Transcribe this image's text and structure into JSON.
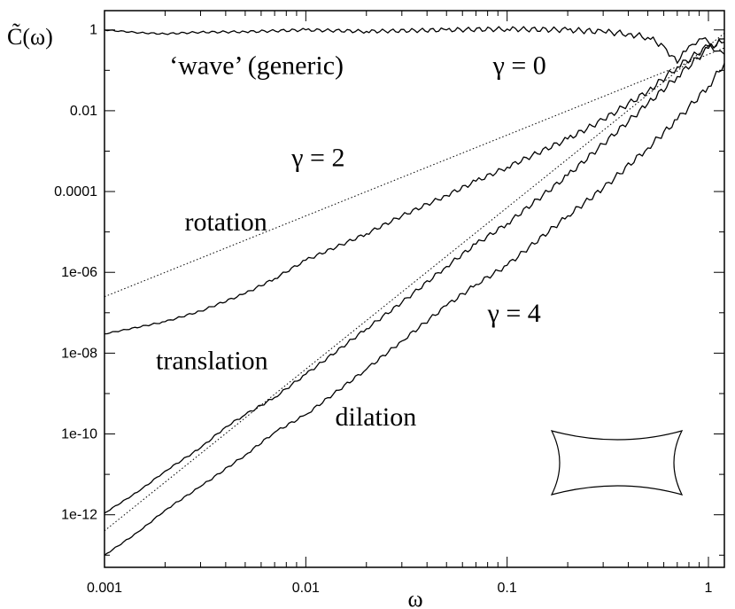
{
  "chart_data": {
    "type": "line",
    "xscale": "log",
    "yscale": "log",
    "xlim": [
      0.001,
      1.2
    ],
    "ylim": [
      5e-14,
      3
    ],
    "xlabel": "ω",
    "ylabel": "C̃(ω)",
    "x_ticks": [
      {
        "value": 0.001,
        "label": "0.001"
      },
      {
        "value": 0.01,
        "label": "0.01"
      },
      {
        "value": 0.1,
        "label": "0.1"
      },
      {
        "value": 1,
        "label": "1"
      }
    ],
    "y_ticks": [
      {
        "value": 1,
        "label": "1"
      },
      {
        "value": 0.01,
        "label": "0.01"
      },
      {
        "value": 0.0001,
        "label": "0.0001"
      },
      {
        "value": 1e-06,
        "label": "1e-06"
      },
      {
        "value": 1e-08,
        "label": "1e-08"
      },
      {
        "value": 1e-10,
        "label": "1e-10"
      },
      {
        "value": 1e-12,
        "label": "1e-12"
      }
    ],
    "grid": false,
    "legend": "none",
    "annotations": [
      {
        "text": "‘wave’ (generic)",
        "x": 0.0021,
        "y": 0.08
      },
      {
        "text": "γ = 0",
        "x": 0.085,
        "y": 0.08
      },
      {
        "text": "γ = 2",
        "x": 0.0085,
        "y": 0.00042
      },
      {
        "text": "rotation",
        "x": 0.0025,
        "y": 1.1e-05
      },
      {
        "text": "γ = 4",
        "x": 0.08,
        "y": 6e-08
      },
      {
        "text": "translation",
        "x": 0.0018,
        "y": 4e-09
      },
      {
        "text": "dilation",
        "x": 0.014,
        "y": 1.6e-10
      }
    ],
    "series": [
      {
        "kind": "solid",
        "x": [
          0.001,
          0.0015,
          0.002,
          0.003,
          0.005,
          0.01,
          0.02,
          0.05,
          0.1,
          0.2,
          0.3,
          0.4,
          0.5,
          0.6,
          0.7,
          0.8,
          0.9,
          1.0,
          1.1,
          1.2
        ],
        "y": [
          1.0,
          0.85,
          0.8,
          0.88,
          0.9,
          1.0,
          0.92,
          1.0,
          1.05,
          1.0,
          0.9,
          0.8,
          0.65,
          0.4,
          0.15,
          0.4,
          0.6,
          0.5,
          0.3,
          0.25
        ]
      },
      {
        "kind": "solid",
        "x": [
          0.001,
          0.002,
          0.003,
          0.005,
          0.007,
          0.01,
          0.02,
          0.03,
          0.05,
          0.07,
          0.1,
          0.2,
          0.3,
          0.5,
          0.7,
          1.0,
          1.2
        ],
        "y": [
          3e-08,
          6e-08,
          1.1e-07,
          3e-07,
          7e-07,
          2e-06,
          9e-06,
          2.5e-05,
          8e-05,
          0.00018,
          0.0004,
          0.002,
          0.006,
          0.03,
          0.12,
          0.4,
          0.5
        ]
      },
      {
        "kind": "solid",
        "x": [
          0.001,
          0.0015,
          0.002,
          0.003,
          0.004,
          0.005,
          0.007,
          0.01,
          0.02,
          0.03,
          0.05,
          0.07,
          0.1,
          0.2,
          0.3,
          0.5,
          0.7,
          1.0,
          1.2
        ],
        "y": [
          1.1e-12,
          4e-12,
          1.2e-11,
          4.5e-11,
          1.5e-10,
          3e-10,
          8e-10,
          3e-09,
          4e-08,
          1.8e-07,
          1.4e-06,
          5e-06,
          1.6e-05,
          0.00025,
          0.0015,
          0.015,
          0.07,
          0.35,
          0.6
        ]
      },
      {
        "kind": "solid",
        "x": [
          0.001,
          0.0015,
          0.002,
          0.003,
          0.005,
          0.007,
          0.01,
          0.02,
          0.03,
          0.05,
          0.07,
          0.1,
          0.2,
          0.3,
          0.5,
          0.7,
          1.0,
          1.2
        ],
        "y": [
          1e-13,
          4e-13,
          1.3e-12,
          5e-12,
          3e-11,
          1.1e-10,
          3e-10,
          4e-09,
          2e-08,
          1.5e-07,
          5e-07,
          1.5e-06,
          2.5e-05,
          0.00012,
          0.0012,
          0.006,
          0.04,
          0.15
        ]
      },
      {
        "kind": "dotted",
        "x": [
          0.001,
          1.2
        ],
        "y": [
          2.5e-07,
          0.36
        ]
      },
      {
        "kind": "dotted",
        "x": [
          0.001,
          1.2
        ],
        "y": [
          4e-13,
          0.83
        ]
      }
    ],
    "inset": {
      "shape": "concave-sided rectangle (stadium billiard outline)"
    }
  }
}
